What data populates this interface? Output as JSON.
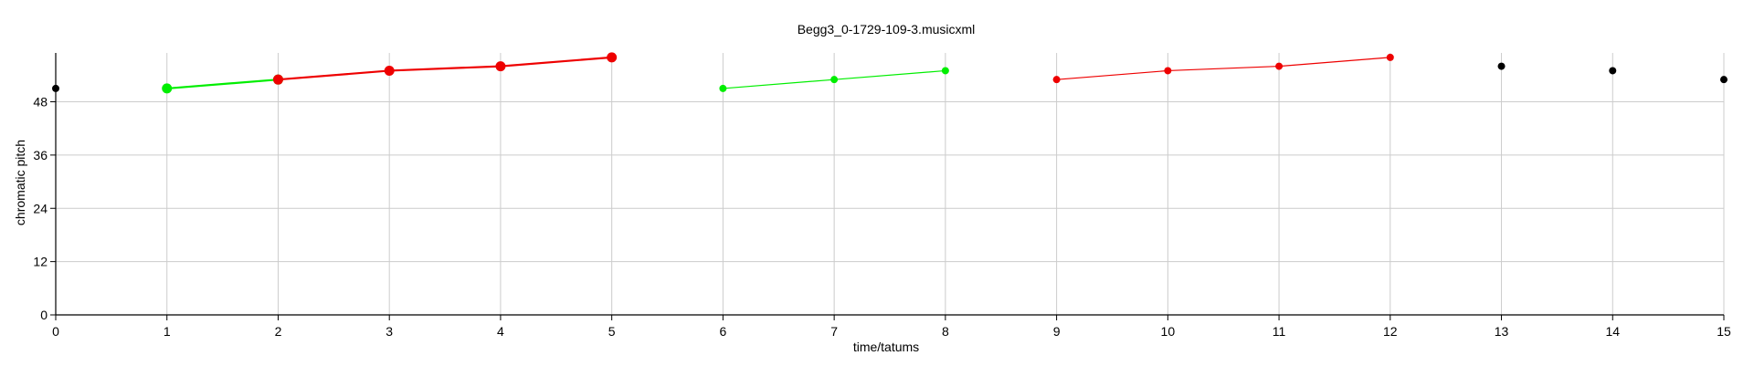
{
  "chart_data": {
    "type": "scatter",
    "title": "Begg3_0-1729-109-3.musicxml",
    "xlabel": "time/tatums",
    "ylabel": "chromatic pitch",
    "xlim": [
      0,
      15
    ],
    "ylim": [
      0,
      59
    ],
    "xticks": [
      0,
      1,
      2,
      3,
      4,
      5,
      6,
      7,
      8,
      9,
      10,
      11,
      12,
      13,
      14,
      15
    ],
    "yticks": [
      0,
      12,
      24,
      36,
      48
    ],
    "grid": true,
    "colors": {
      "green": "#00ee00",
      "red": "#ee0000",
      "black": "#000000",
      "grid": "#cccccc"
    },
    "series": [
      {
        "color": "green",
        "size": "large",
        "connected": true,
        "points": [
          [
            1,
            51
          ],
          [
            2,
            53
          ]
        ]
      },
      {
        "color": "red",
        "size": "large",
        "connected": true,
        "points": [
          [
            2,
            53
          ],
          [
            3,
            55
          ],
          [
            4,
            56
          ],
          [
            5,
            58
          ]
        ]
      },
      {
        "color": "green",
        "size": "small",
        "connected": true,
        "points": [
          [
            6,
            51
          ],
          [
            7,
            53
          ],
          [
            8,
            55
          ]
        ]
      },
      {
        "color": "red",
        "size": "small",
        "connected": true,
        "points": [
          [
            9,
            53
          ],
          [
            10,
            55
          ],
          [
            11,
            56
          ],
          [
            12,
            58
          ]
        ]
      },
      {
        "color": "black",
        "size": "small",
        "connected": false,
        "points": [
          [
            0,
            51
          ],
          [
            13,
            56
          ],
          [
            14,
            55
          ],
          [
            15,
            53
          ]
        ]
      }
    ]
  }
}
